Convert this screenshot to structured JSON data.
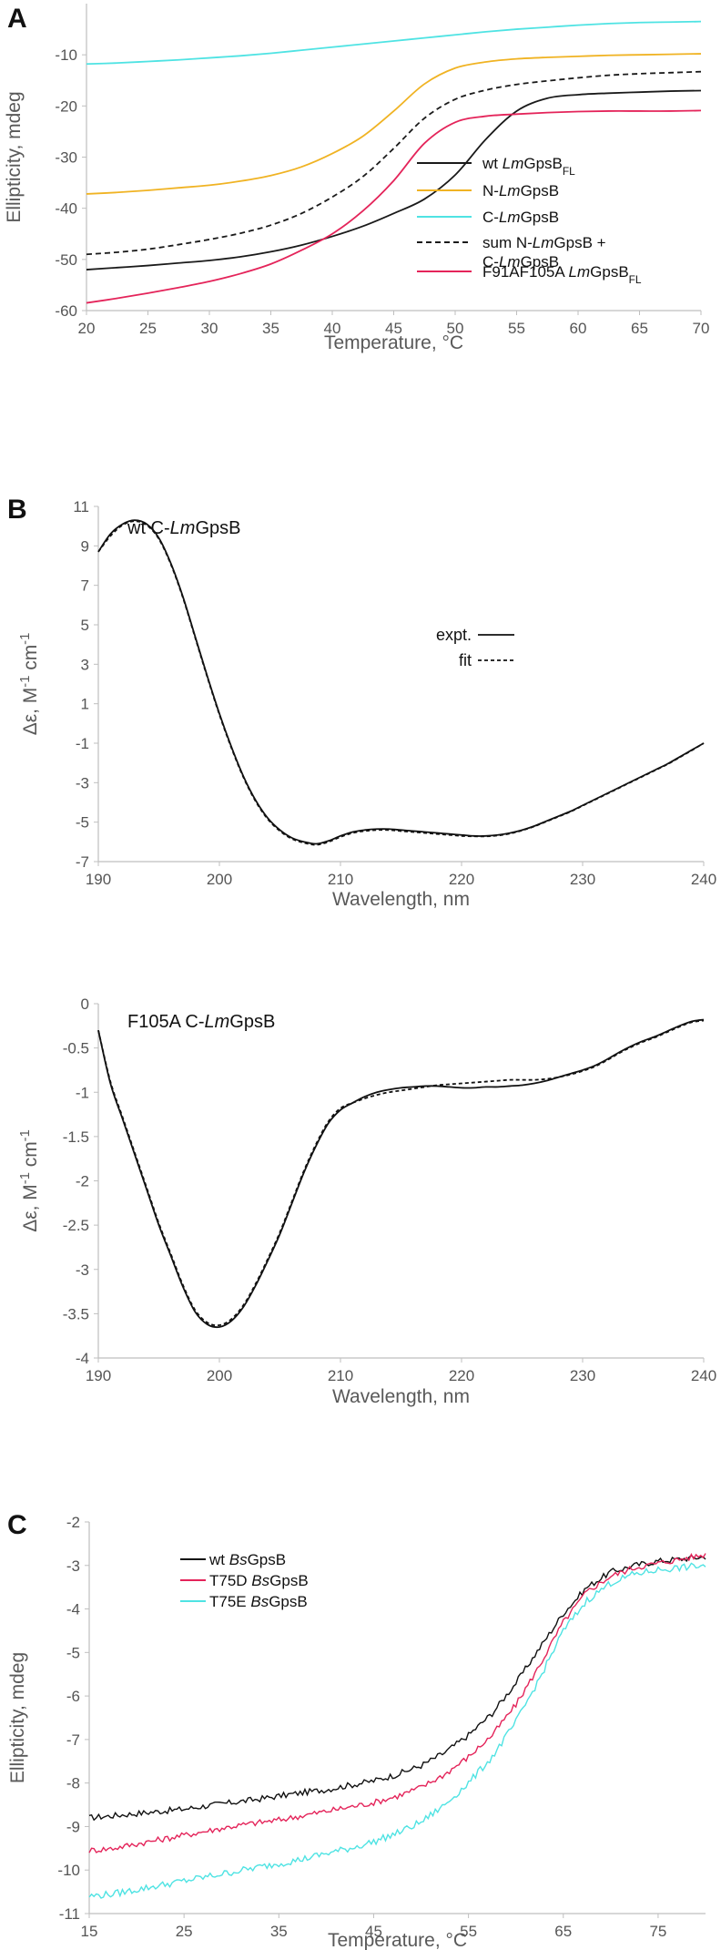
{
  "panels": {
    "A": {
      "letter": "A",
      "chart_data": {
        "type": "line",
        "title": "",
        "xlabel": "Temperature, °C",
        "ylabel": "Ellipticity, mdeg",
        "xlim": [
          20,
          70
        ],
        "ylim": [
          -60,
          0
        ],
        "xticks": [
          20,
          25,
          30,
          35,
          40,
          45,
          50,
          55,
          60,
          65,
          70
        ],
        "yticks": [
          -60,
          -50,
          -40,
          -30,
          -20,
          -10
        ],
        "grid": false,
        "legend_position": "center-right",
        "x": [
          20,
          22.5,
          25,
          27.5,
          30,
          32.5,
          35,
          37.5,
          40,
          42.5,
          45,
          47.5,
          50,
          52.5,
          55,
          57.5,
          60,
          62.5,
          65,
          67.5,
          70
        ],
        "series": [
          {
            "key": "wt",
            "name_parts": [
              {
                "t": "wt "
              },
              {
                "t": "Lm",
                "i": true
              },
              {
                "t": "GpsB"
              },
              {
                "t": "FL",
                "sub": true
              }
            ],
            "color": "#1a1a1a",
            "dash": "solid",
            "values": [
              -52,
              -51.6,
              -51.2,
              -50.7,
              -50.2,
              -49.5,
              -48.5,
              -47.2,
              -45.5,
              -43.5,
              -41,
              -38.2,
              -33.5,
              -26.5,
              -21,
              -18.5,
              -17.8,
              -17.5,
              -17.3,
              -17.1,
              -17
            ]
          },
          {
            "key": "N",
            "name_parts": [
              {
                "t": "N-"
              },
              {
                "t": "Lm",
                "i": true
              },
              {
                "t": "GpsB"
              }
            ],
            "color": "#f0b323",
            "dash": "solid",
            "values": [
              -37.2,
              -36.9,
              -36.5,
              -36,
              -35.5,
              -34.7,
              -33.6,
              -31.9,
              -29.3,
              -25.9,
              -21,
              -15.7,
              -12.6,
              -11.4,
              -10.8,
              -10.5,
              -10.3,
              -10.1,
              -10,
              -9.9,
              -9.8
            ]
          },
          {
            "key": "C",
            "name_parts": [
              {
                "t": "C-"
              },
              {
                "t": "Lm",
                "i": true
              },
              {
                "t": "GpsB"
              }
            ],
            "color": "#4fe3e3",
            "dash": "solid",
            "values": [
              -11.8,
              -11.6,
              -11.3,
              -11,
              -10.6,
              -10.2,
              -9.7,
              -9.1,
              -8.5,
              -7.9,
              -7.3,
              -6.7,
              -6.1,
              -5.5,
              -5,
              -4.6,
              -4.2,
              -3.9,
              -3.7,
              -3.6,
              -3.5
            ]
          },
          {
            "key": "sum",
            "name_parts": [
              {
                "t": "sum N-"
              },
              {
                "t": "Lm",
                "i": true
              },
              {
                "t": "GpsB +"
              }
            ],
            "name_parts_2": [
              {
                "t": "C-"
              },
              {
                "t": "Lm",
                "i": true
              },
              {
                "t": "GpsB"
              }
            ],
            "color": "#1a1a1a",
            "dash": "6,4",
            "values": [
              -49,
              -48.6,
              -48,
              -47.1,
              -46.1,
              -44.9,
              -43.3,
              -41,
              -37.8,
              -33.8,
              -28.3,
              -22.4,
              -18.7,
              -16.9,
              -15.8,
              -15.1,
              -14.5,
              -14,
              -13.7,
              -13.5,
              -13.3
            ]
          },
          {
            "key": "F91A",
            "name_parts": [
              {
                "t": "F91AF105A "
              },
              {
                "t": "Lm",
                "i": true
              },
              {
                "t": "GpsB"
              },
              {
                "t": "FL",
                "sub": true
              }
            ],
            "color": "#e4245a",
            "dash": "solid",
            "values": [
              -58.5,
              -57.6,
              -56.6,
              -55.5,
              -54.3,
              -52.8,
              -50.9,
              -48.2,
              -45,
              -40.5,
              -34.6,
              -27.3,
              -23.2,
              -22,
              -21.6,
              -21.3,
              -21.1,
              -21,
              -21,
              -21,
              -20.9
            ]
          }
        ]
      }
    },
    "B1": {
      "letter": "B",
      "subtitle_parts": [
        {
          "t": "wt C-"
        },
        {
          "t": "Lm",
          "i": true
        },
        {
          "t": "GpsB"
        }
      ],
      "chart_data": {
        "type": "line",
        "title": "",
        "xlabel": "Wavelength,  nm",
        "ylabel_parts": [
          {
            "t": "Δε, M"
          },
          {
            "t": "-1",
            "sup": true
          },
          {
            "t": " cm"
          },
          {
            "t": "-1",
            "sup": true
          }
        ],
        "xlim": [
          190,
          240
        ],
        "ylim": [
          -7,
          11
        ],
        "xticks": [
          190,
          200,
          210,
          220,
          230,
          240
        ],
        "yticks": [
          11,
          9,
          7,
          5,
          3,
          1,
          -1,
          -3,
          -5,
          -7
        ],
        "grid": false,
        "legend_position": "upper-right",
        "x": [
          190,
          191,
          192,
          193,
          194,
          195,
          196,
          197,
          198,
          199,
          200,
          201,
          202,
          203,
          204,
          205,
          206,
          207,
          208,
          209,
          210,
          211,
          212,
          213,
          214,
          215,
          216,
          217,
          218,
          219,
          220,
          221,
          222,
          223,
          224,
          225,
          226,
          227,
          228,
          229,
          230,
          231,
          232,
          233,
          234,
          235,
          236,
          237,
          238,
          239,
          240
        ],
        "series": [
          {
            "key": "expt",
            "name": "expt.",
            "color": "#111111",
            "dash": "solid",
            "values": [
              8.7,
              9.6,
              10.1,
              10.3,
              10.1,
              9.4,
              8.1,
              6.4,
              4.4,
              2.4,
              0.5,
              -1.2,
              -2.7,
              -3.9,
              -4.8,
              -5.4,
              -5.8,
              -6.0,
              -6.1,
              -5.95,
              -5.7,
              -5.5,
              -5.4,
              -5.35,
              -5.35,
              -5.4,
              -5.45,
              -5.5,
              -5.55,
              -5.6,
              -5.65,
              -5.7,
              -5.7,
              -5.65,
              -5.55,
              -5.4,
              -5.2,
              -4.95,
              -4.7,
              -4.45,
              -4.15,
              -3.85,
              -3.55,
              -3.25,
              -2.95,
              -2.65,
              -2.35,
              -2.05,
              -1.7,
              -1.35,
              -1.0
            ]
          },
          {
            "key": "fit",
            "name": "fit",
            "color": "#111111",
            "dash": "4,3",
            "values": [
              8.7,
              9.5,
              10.05,
              10.25,
              10.05,
              9.35,
              8.05,
              6.35,
              4.35,
              2.35,
              0.45,
              -1.25,
              -2.75,
              -3.95,
              -4.85,
              -5.45,
              -5.85,
              -6.05,
              -6.15,
              -6.0,
              -5.75,
              -5.55,
              -5.45,
              -5.4,
              -5.4,
              -5.45,
              -5.5,
              -5.55,
              -5.6,
              -5.65,
              -5.7,
              -5.72,
              -5.72,
              -5.68,
              -5.58,
              -5.42,
              -5.22,
              -4.97,
              -4.72,
              -4.47,
              -4.17,
              -3.87,
              -3.57,
              -3.27,
              -2.97,
              -2.67,
              -2.37,
              -2.07,
              -1.72,
              -1.37,
              -1.0
            ]
          }
        ]
      }
    },
    "B2": {
      "subtitle_parts": [
        {
          "t": "F105A C-"
        },
        {
          "t": "Lm",
          "i": true
        },
        {
          "t": "GpsB"
        }
      ],
      "chart_data": {
        "type": "line",
        "title": "",
        "xlabel": "Wavelength,  nm",
        "ylabel_parts": [
          {
            "t": "Δε, M"
          },
          {
            "t": "-1",
            "sup": true
          },
          {
            "t": " cm"
          },
          {
            "t": "-1",
            "sup": true
          }
        ],
        "xlim": [
          190,
          240
        ],
        "ylim": [
          -4,
          0
        ],
        "xticks": [
          190,
          200,
          210,
          220,
          230,
          240
        ],
        "yticks": [
          0,
          -0.5,
          -1,
          -1.5,
          -2,
          -2.5,
          -3,
          -3.5,
          -4
        ],
        "grid": false,
        "x": [
          190,
          191,
          192,
          193,
          194,
          195,
          196,
          197,
          198,
          199,
          200,
          201,
          202,
          203,
          204,
          205,
          206,
          207,
          208,
          209,
          210,
          211,
          212,
          213,
          214,
          215,
          216,
          217,
          218,
          219,
          220,
          221,
          222,
          223,
          224,
          225,
          226,
          227,
          228,
          229,
          230,
          231,
          232,
          233,
          234,
          235,
          236,
          237,
          238,
          239,
          240
        ],
        "series": [
          {
            "key": "expt",
            "name": "",
            "color": "#111111",
            "dash": "solid",
            "values": [
              -0.3,
              -0.9,
              -1.3,
              -1.7,
              -2.1,
              -2.5,
              -2.85,
              -3.2,
              -3.48,
              -3.62,
              -3.65,
              -3.58,
              -3.42,
              -3.18,
              -2.9,
              -2.6,
              -2.25,
              -1.9,
              -1.6,
              -1.35,
              -1.2,
              -1.12,
              -1.05,
              -1.0,
              -0.97,
              -0.95,
              -0.94,
              -0.93,
              -0.93,
              -0.94,
              -0.95,
              -0.95,
              -0.94,
              -0.94,
              -0.93,
              -0.92,
              -0.9,
              -0.87,
              -0.83,
              -0.79,
              -0.75,
              -0.7,
              -0.63,
              -0.55,
              -0.48,
              -0.42,
              -0.37,
              -0.31,
              -0.25,
              -0.2,
              -0.18
            ]
          },
          {
            "key": "fit",
            "name": "",
            "color": "#111111",
            "dash": "4,3",
            "values": [
              -0.3,
              -0.88,
              -1.28,
              -1.68,
              -2.08,
              -2.48,
              -2.83,
              -3.18,
              -3.46,
              -3.6,
              -3.63,
              -3.56,
              -3.4,
              -3.16,
              -2.88,
              -2.58,
              -2.23,
              -1.88,
              -1.58,
              -1.33,
              -1.18,
              -1.12,
              -1.07,
              -1.03,
              -1.0,
              -0.98,
              -0.96,
              -0.94,
              -0.92,
              -0.91,
              -0.9,
              -0.89,
              -0.88,
              -0.87,
              -0.86,
              -0.86,
              -0.86,
              -0.85,
              -0.83,
              -0.8,
              -0.76,
              -0.71,
              -0.64,
              -0.56,
              -0.49,
              -0.43,
              -0.38,
              -0.32,
              -0.26,
              -0.21,
              -0.19
            ]
          }
        ]
      }
    },
    "C": {
      "letter": "C",
      "chart_data": {
        "type": "line",
        "title": "",
        "xlabel": "Temperature, °C",
        "ylabel": "Ellipticity, mdeg",
        "xlim": [
          15,
          80
        ],
        "ylim": [
          -11,
          -2
        ],
        "xticks": [
          15,
          25,
          35,
          45,
          55,
          65,
          75
        ],
        "yticks": [
          -2,
          -3,
          -4,
          -5,
          -6,
          -7,
          -8,
          -9,
          -10,
          -11
        ],
        "grid": false,
        "legend_position": "top-left",
        "x": [
          15,
          17.5,
          20,
          22.5,
          25,
          27.5,
          30,
          32.5,
          35,
          37.5,
          40,
          42.5,
          45,
          47.5,
          50,
          52.5,
          55,
          57.5,
          60,
          62.5,
          65,
          67.5,
          70,
          72.5,
          75,
          77.5,
          80
        ],
        "series": [
          {
            "key": "wt",
            "name_parts": [
              {
                "t": "wt      "
              },
              {
                "t": "Bs",
                "i": true
              },
              {
                "t": "GpsB"
              }
            ],
            "color": "#111111",
            "dash": "solid",
            "noise": 0.07,
            "values": [
              -8.8,
              -8.75,
              -8.7,
              -8.65,
              -8.6,
              -8.52,
              -8.45,
              -8.38,
              -8.3,
              -8.22,
              -8.15,
              -8.05,
              -7.95,
              -7.8,
              -7.6,
              -7.3,
              -6.9,
              -6.4,
              -5.7,
              -4.9,
              -4.1,
              -3.5,
              -3.15,
              -3.0,
              -2.9,
              -2.85,
              -2.8
            ]
          },
          {
            "key": "T75D",
            "name_parts": [
              {
                "t": "T75D "
              },
              {
                "t": "Bs",
                "i": true
              },
              {
                "t": "GpsB"
              }
            ],
            "color": "#e4245a",
            "dash": "solid",
            "noise": 0.07,
            "values": [
              -9.55,
              -9.5,
              -9.4,
              -9.3,
              -9.2,
              -9.1,
              -9.0,
              -8.92,
              -8.85,
              -8.75,
              -8.65,
              -8.55,
              -8.45,
              -8.3,
              -8.1,
              -7.8,
              -7.4,
              -6.9,
              -6.2,
              -5.3,
              -4.3,
              -3.6,
              -3.25,
              -3.05,
              -2.95,
              -2.85,
              -2.75
            ]
          },
          {
            "key": "T75E",
            "name_parts": [
              {
                "t": "T75E "
              },
              {
                "t": "Bs",
                "i": true
              },
              {
                "t": "GpsB"
              }
            ],
            "color": "#4fe3e3",
            "dash": "solid",
            "noise": 0.08,
            "values": [
              -10.6,
              -10.55,
              -10.45,
              -10.35,
              -10.25,
              -10.15,
              -10.05,
              -9.95,
              -9.85,
              -9.75,
              -9.62,
              -9.5,
              -9.35,
              -9.15,
              -8.9,
              -8.5,
              -8.0,
              -7.4,
              -6.6,
              -5.6,
              -4.5,
              -3.8,
              -3.4,
              -3.2,
              -3.1,
              -3.05,
              -3.0
            ]
          }
        ]
      }
    }
  }
}
